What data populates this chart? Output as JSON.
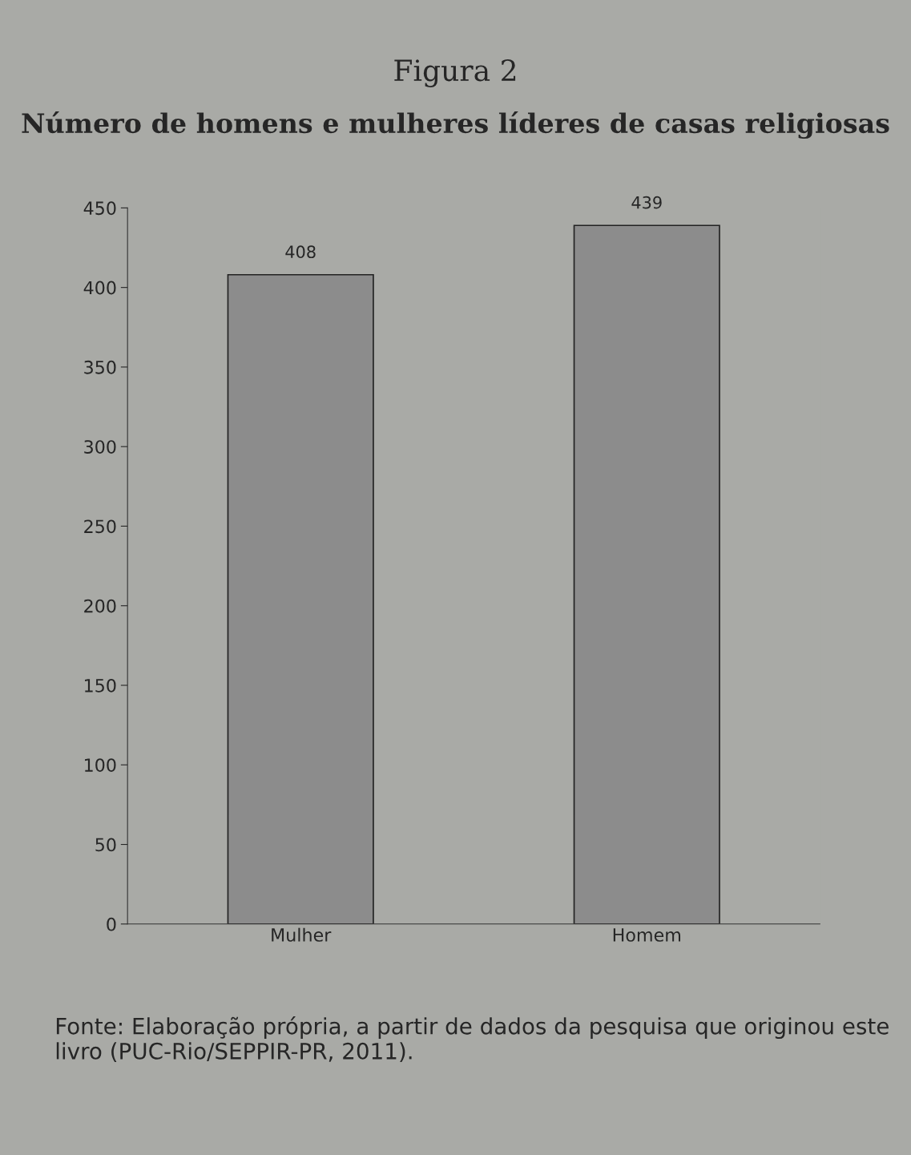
{
  "chart_data": {
    "type": "bar",
    "title": "Figura 2",
    "subtitle": "Número de homens e mulheres líderes de casas religiosas",
    "categories": [
      "Mulher",
      "Homem"
    ],
    "series": [
      {
        "color": "#8c8c8c",
        "values": [
          408,
          439
        ]
      }
    ],
    "ylim": [
      0,
      450
    ],
    "yticks": [
      0,
      50,
      100,
      150,
      200,
      250,
      300,
      350,
      400,
      450
    ],
    "data_labels": true,
    "grid": false,
    "legend": false,
    "annotations": [
      "Fonte: Elaboração própria, a partir de dados da pesquisa que originou este livro (PUC-Rio/SEPPIR-PR, 2011)."
    ]
  }
}
